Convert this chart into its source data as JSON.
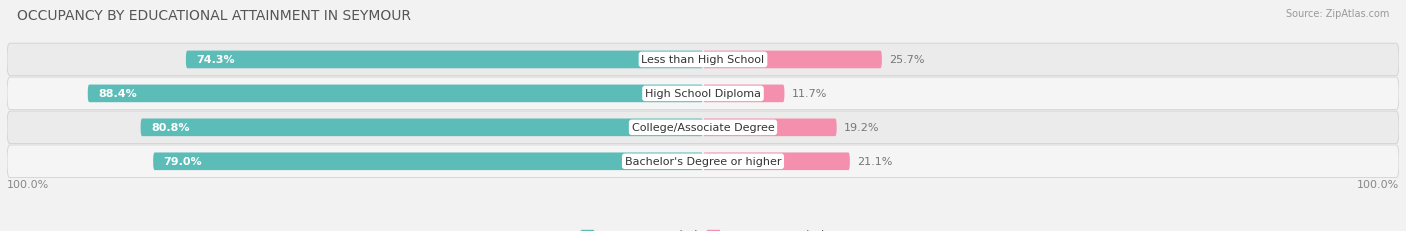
{
  "title": "OCCUPANCY BY EDUCATIONAL ATTAINMENT IN SEYMOUR",
  "source": "Source: ZipAtlas.com",
  "categories": [
    "Less than High School",
    "High School Diploma",
    "College/Associate Degree",
    "Bachelor's Degree or higher"
  ],
  "owner_pct": [
    74.3,
    88.4,
    80.8,
    79.0
  ],
  "renter_pct": [
    25.7,
    11.7,
    19.2,
    21.1
  ],
  "owner_color": "#5bbcb8",
  "renter_color": "#f48fad",
  "bg_color": "#f2f2f2",
  "title_fontsize": 10,
  "label_fontsize": 8,
  "tick_fontsize": 8,
  "legend_fontsize": 8.5,
  "axis_label_left": "100.0%",
  "axis_label_right": "100.0%"
}
